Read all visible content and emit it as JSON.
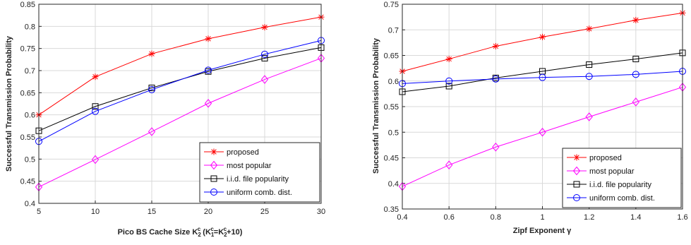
{
  "chart_data": [
    {
      "type": "line",
      "title": "",
      "xlabel": "",
      "xlabel_parts": {
        "prefix": "Pico BS Cache Size K",
        "k_sub": "2",
        "k_sup": "c",
        "paren_open": " (K",
        "k1_sub": "1",
        "k1_sup": "c",
        "eq": "=K",
        "k2_sub": "2",
        "k2_sup": "c",
        "suffix": "+10)"
      },
      "ylabel": "Successful Transmission Probability",
      "x": [
        5,
        10,
        15,
        20,
        25,
        30
      ],
      "xlim": [
        5,
        30
      ],
      "ylim": [
        0.4,
        0.85
      ],
      "xticks": [
        5,
        10,
        15,
        20,
        25,
        30
      ],
      "yticks": [
        0.4,
        0.45,
        0.5,
        0.55,
        0.6,
        0.65,
        0.7,
        0.75,
        0.8,
        0.85
      ],
      "grid": true,
      "legend_position": "bottom-right",
      "series": [
        {
          "name": "proposed",
          "color": "#ff0000",
          "marker": "star",
          "values": [
            0.6,
            0.686,
            0.738,
            0.772,
            0.798,
            0.821
          ]
        },
        {
          "name": "most popular",
          "color": "#ff00ff",
          "marker": "diamond",
          "values": [
            0.437,
            0.499,
            0.562,
            0.626,
            0.68,
            0.728
          ]
        },
        {
          "name": "i.i.d. file popularity",
          "color": "#000000",
          "marker": "square",
          "values": [
            0.564,
            0.619,
            0.661,
            0.698,
            0.728,
            0.752
          ]
        },
        {
          "name": "uniform comb. dist.",
          "color": "#0000ff",
          "marker": "circle",
          "values": [
            0.54,
            0.608,
            0.657,
            0.701,
            0.737,
            0.768
          ]
        }
      ]
    },
    {
      "type": "line",
      "title": "",
      "xlabel": "Zipf Exponent γ",
      "ylabel": "Successful Transmission Probability",
      "x": [
        0.4,
        0.6,
        0.8,
        1.0,
        1.2,
        1.4,
        1.6
      ],
      "xlim": [
        0.4,
        1.6
      ],
      "ylim": [
        0.35,
        0.75
      ],
      "xticks": [
        0.4,
        0.6,
        0.8,
        1,
        1.2,
        1.4,
        1.6
      ],
      "yticks": [
        0.35,
        0.4,
        0.45,
        0.5,
        0.55,
        0.6,
        0.65,
        0.7,
        0.75
      ],
      "grid": true,
      "legend_position": "bottom-right",
      "series": [
        {
          "name": "proposed",
          "color": "#ff0000",
          "marker": "star",
          "values": [
            0.619,
            0.643,
            0.668,
            0.686,
            0.702,
            0.719,
            0.733
          ]
        },
        {
          "name": "most popular",
          "color": "#ff00ff",
          "marker": "diamond",
          "values": [
            0.394,
            0.436,
            0.471,
            0.5,
            0.53,
            0.559,
            0.588
          ]
        },
        {
          "name": "i.i.d. file popularity",
          "color": "#000000",
          "marker": "square",
          "values": [
            0.579,
            0.59,
            0.606,
            0.619,
            0.632,
            0.643,
            0.655
          ]
        },
        {
          "name": "uniform comb. dist.",
          "color": "#0000ff",
          "marker": "circle",
          "values": [
            0.595,
            0.6,
            0.604,
            0.607,
            0.609,
            0.613,
            0.619
          ]
        }
      ]
    }
  ]
}
